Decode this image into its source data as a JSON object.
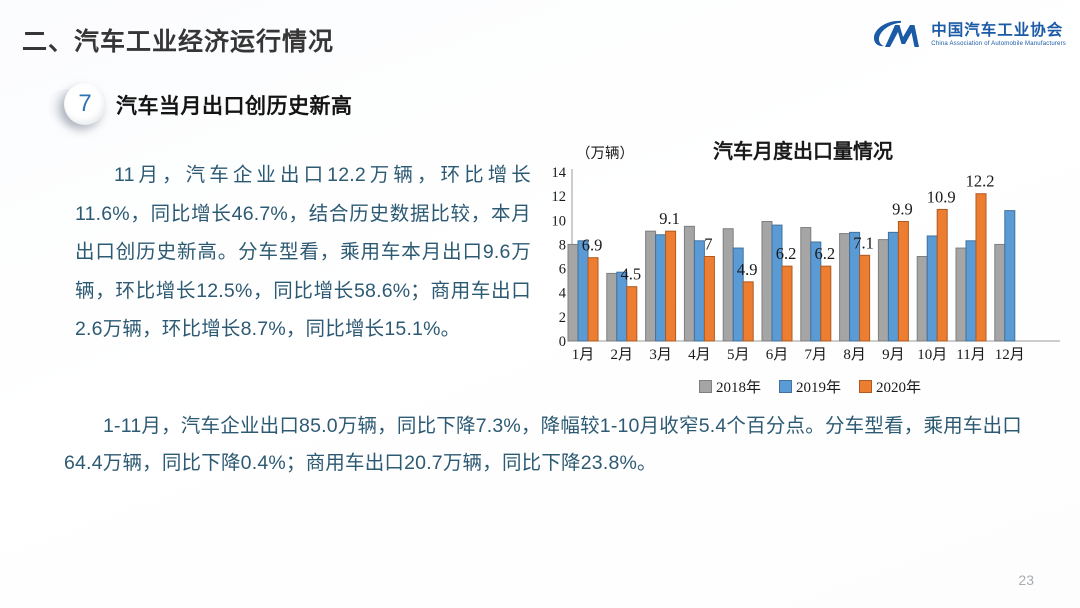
{
  "header": {
    "title": "二、汽车工业经济运行情况"
  },
  "logo": {
    "monogram": "CM",
    "org_name_cn": "中国汽车工业协会",
    "org_name_en": "China Association of Automobile Manufacturers"
  },
  "section": {
    "number": "7",
    "title": "汽车当月出口创历史新高"
  },
  "paragraphs": {
    "monthly": "11月，汽车企业出口12.2万辆，环比增长11.6%，同比增长46.7%，结合历史数据比较，本月出口创历史新高。分车型看，乘用车本月出口9.6万辆，环比增长12.5%，同比增长58.6%；商用车出口2.6万辆，环比增长8.7%，同比增长15.1%。",
    "cumulative": "1-11月，汽车企业出口85.0万辆，同比下降7.3%，降幅较1-10月收窄5.4个百分点。分车型看，乘用车出口64.4万辆，同比下降0.4%；商用车出口20.7万辆，同比下降23.8%。"
  },
  "footer": {
    "page_number": "23"
  },
  "colors": {
    "accent_blue": "#1b5aa5",
    "body_text": "#2d5a73",
    "bar_gray": "#a5a5a5",
    "bar_blue": "#5b9bd5",
    "bar_orange": "#ed7d31"
  },
  "chart_data": {
    "type": "bar",
    "title": "汽车月度出口量情况",
    "unit_label": "（万辆）",
    "categories": [
      "1月",
      "2月",
      "3月",
      "4月",
      "5月",
      "6月",
      "7月",
      "8月",
      "9月",
      "10月",
      "11月",
      "12月"
    ],
    "series": [
      {
        "name": "2018年",
        "color": "#a5a5a5",
        "border": "#7f7f7f",
        "values": [
          8.0,
          5.6,
          9.1,
          9.5,
          9.3,
          9.9,
          9.4,
          8.9,
          8.4,
          7.0,
          7.7,
          8.0
        ]
      },
      {
        "name": "2019年",
        "color": "#5b9bd5",
        "border": "#41719c",
        "values": [
          8.3,
          5.7,
          8.8,
          8.3,
          7.7,
          9.6,
          8.2,
          9.0,
          9.0,
          8.7,
          8.3,
          10.8
        ]
      },
      {
        "name": "2020年",
        "color": "#ed7d31",
        "border": "#ae5a21",
        "values": [
          6.9,
          4.5,
          9.1,
          7.0,
          4.9,
          6.2,
          6.2,
          7.1,
          9.9,
          10.9,
          12.2,
          null
        ],
        "labels": [
          "6.9",
          "4.5",
          "9.1",
          "7",
          "4.9",
          "6.2",
          "6.2",
          "7.1",
          "9.9",
          "10.9",
          "12.2",
          ""
        ]
      }
    ],
    "ylim": [
      0,
      14
    ],
    "yticks": [
      0,
      2,
      4,
      6,
      8,
      10,
      12,
      14
    ],
    "grid": false,
    "legend_position": "bottom"
  }
}
